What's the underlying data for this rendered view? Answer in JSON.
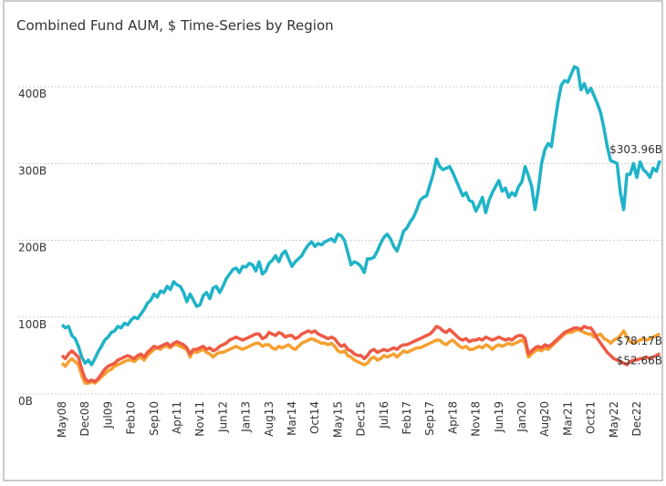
{
  "chart_data": {
    "type": "line",
    "title": "Combined Fund AUM, $ Time-Series by Region",
    "categories": [
      "May08",
      null,
      null,
      null,
      null,
      null,
      null,
      "Dec08",
      null,
      null,
      null,
      null,
      null,
      null,
      "Jul09",
      null,
      null,
      null,
      null,
      null,
      null,
      "Feb10",
      null,
      null,
      null,
      null,
      null,
      null,
      "Sep10",
      null,
      null,
      null,
      null,
      null,
      null,
      "Apr11",
      null,
      null,
      null,
      null,
      null,
      null,
      "Nov11",
      null,
      null,
      null,
      null,
      null,
      null,
      "Jun12",
      null,
      null,
      null,
      null,
      null,
      null,
      "Jan13",
      null,
      null,
      null,
      null,
      null,
      null,
      "Aug13",
      null,
      null,
      null,
      null,
      null,
      null,
      "Mar14",
      null,
      null,
      null,
      null,
      null,
      null,
      "Oct14",
      null,
      null,
      null,
      null,
      null,
      null,
      "May15",
      null,
      null,
      null,
      null,
      null,
      null,
      "Dec15",
      null,
      null,
      null,
      null,
      null,
      null,
      "Jul16",
      null,
      null,
      null,
      null,
      null,
      null,
      "Feb17",
      null,
      null,
      null,
      null,
      null,
      null,
      "Sep17",
      null,
      null,
      null,
      null,
      null,
      null,
      "Apr18",
      null,
      null,
      null,
      null,
      null,
      null,
      "Nov18",
      null,
      null,
      null,
      null,
      null,
      null,
      "Jun19",
      null,
      null,
      null,
      null,
      null,
      null,
      "Jan20",
      null,
      null,
      null,
      null,
      null,
      null,
      "Aug20",
      null,
      null,
      null,
      null,
      null,
      null,
      "Mar21",
      null,
      null,
      null,
      null,
      null,
      null,
      "Oct21",
      null,
      null,
      null,
      null,
      null,
      null,
      "May22",
      null,
      null,
      null,
      null,
      null,
      null,
      "Dec22",
      null,
      null,
      null,
      null,
      null,
      null,
      null
    ],
    "series": [
      {
        "color": "#1fb3c8",
        "end_label": "$303.96B",
        "values": [
          90,
          86,
          88,
          76,
          72,
          62,
          48,
          40,
          44,
          38,
          46,
          55,
          62,
          70,
          74,
          80,
          82,
          88,
          86,
          92,
          90,
          96,
          100,
          98,
          104,
          110,
          118,
          122,
          130,
          126,
          134,
          132,
          140,
          136,
          146,
          142,
          140,
          132,
          120,
          130,
          122,
          114,
          116,
          128,
          132,
          124,
          138,
          140,
          132,
          140,
          150,
          156,
          162,
          164,
          158,
          166,
          165,
          170,
          168,
          160,
          172,
          156,
          160,
          170,
          174,
          180,
          172,
          182,
          186,
          176,
          166,
          172,
          176,
          180,
          188,
          194,
          198,
          192,
          196,
          194,
          198,
          200,
          202,
          198,
          208,
          206,
          200,
          184,
          168,
          172,
          170,
          166,
          158,
          176,
          176,
          178,
          186,
          196,
          204,
          208,
          202,
          192,
          186,
          198,
          212,
          216,
          224,
          230,
          240,
          252,
          256,
          258,
          272,
          286,
          306,
          296,
          292,
          294,
          296,
          288,
          278,
          268,
          258,
          262,
          252,
          250,
          238,
          246,
          256,
          236,
          252,
          262,
          270,
          278,
          264,
          268,
          256,
          262,
          258,
          270,
          276,
          296,
          284,
          270,
          240,
          266,
          300,
          318,
          326,
          322,
          352,
          380,
          402,
          408,
          406,
          416,
          426,
          424,
          396,
          404,
          392,
          398,
          388,
          378,
          366,
          346,
          322,
          304,
          302,
          300,
          262,
          240,
          286,
          286,
          300,
          282,
          302,
          292,
          288,
          282,
          294,
          290,
          303.96
        ]
      },
      {
        "color": "#f5a030",
        "end_label": "$78.17B",
        "values": [
          40,
          36,
          42,
          46,
          42,
          38,
          24,
          14,
          14,
          16,
          14,
          18,
          22,
          26,
          30,
          32,
          36,
          38,
          40,
          42,
          44,
          44,
          42,
          46,
          48,
          44,
          50,
          54,
          58,
          60,
          58,
          62,
          62,
          60,
          64,
          64,
          62,
          60,
          58,
          48,
          56,
          54,
          56,
          58,
          54,
          52,
          48,
          52,
          54,
          54,
          56,
          58,
          60,
          62,
          60,
          58,
          60,
          62,
          64,
          66,
          66,
          62,
          64,
          64,
          60,
          58,
          62,
          60,
          62,
          64,
          60,
          58,
          62,
          66,
          68,
          70,
          72,
          70,
          68,
          66,
          66,
          64,
          66,
          62,
          56,
          54,
          56,
          50,
          48,
          44,
          42,
          40,
          38,
          40,
          46,
          48,
          44,
          46,
          50,
          48,
          50,
          52,
          48,
          52,
          56,
          54,
          56,
          58,
          60,
          60,
          62,
          64,
          66,
          68,
          70,
          70,
          66,
          64,
          68,
          70,
          66,
          62,
          60,
          62,
          58,
          58,
          60,
          62,
          60,
          64,
          62,
          58,
          62,
          64,
          62,
          64,
          66,
          64,
          66,
          68,
          70,
          66,
          48,
          52,
          56,
          58,
          56,
          60,
          58,
          62,
          66,
          70,
          74,
          78,
          80,
          80,
          82,
          84,
          82,
          80,
          78,
          78,
          74,
          76,
          78,
          72,
          70,
          66,
          70,
          72,
          76,
          82,
          74,
          68,
          66,
          68,
          70,
          72,
          70,
          72,
          74,
          76,
          78.17
        ]
      },
      {
        "color": "#ee5a45",
        "end_label": "$52.66B",
        "values": [
          50,
          46,
          52,
          56,
          52,
          48,
          32,
          20,
          16,
          18,
          16,
          20,
          26,
          32,
          36,
          38,
          40,
          44,
          46,
          48,
          50,
          48,
          46,
          50,
          52,
          48,
          54,
          58,
          62,
          60,
          62,
          64,
          66,
          62,
          66,
          68,
          66,
          64,
          60,
          52,
          58,
          58,
          60,
          62,
          58,
          60,
          56,
          58,
          62,
          64,
          66,
          70,
          72,
          74,
          72,
          70,
          72,
          74,
          76,
          78,
          78,
          72,
          74,
          80,
          78,
          76,
          80,
          78,
          74,
          76,
          76,
          72,
          74,
          78,
          80,
          82,
          80,
          82,
          78,
          76,
          74,
          72,
          74,
          72,
          66,
          62,
          64,
          58,
          56,
          52,
          50,
          50,
          46,
          50,
          56,
          58,
          54,
          56,
          58,
          56,
          58,
          60,
          58,
          62,
          64,
          64,
          66,
          68,
          70,
          72,
          74,
          76,
          78,
          82,
          88,
          86,
          82,
          80,
          84,
          80,
          76,
          72,
          70,
          72,
          68,
          70,
          70,
          72,
          70,
          74,
          72,
          70,
          72,
          74,
          72,
          70,
          72,
          70,
          74,
          76,
          76,
          72,
          52,
          56,
          60,
          62,
          60,
          64,
          62,
          64,
          68,
          72,
          76,
          80,
          82,
          84,
          86,
          86,
          84,
          88,
          86,
          86,
          80,
          72,
          66,
          60,
          54,
          50,
          46,
          44,
          42,
          40,
          38,
          42,
          44,
          44,
          46,
          46,
          48,
          46,
          48,
          50,
          52.66
        ]
      }
    ],
    "ylim": [
      0,
      450
    ],
    "yticks": [
      {
        "value": 0,
        "label": "0B"
      },
      {
        "value": 100,
        "label": "100B"
      },
      {
        "value": 200,
        "label": "200B"
      },
      {
        "value": 300,
        "label": "300B"
      },
      {
        "value": 400,
        "label": "400B"
      }
    ],
    "grid": true
  }
}
